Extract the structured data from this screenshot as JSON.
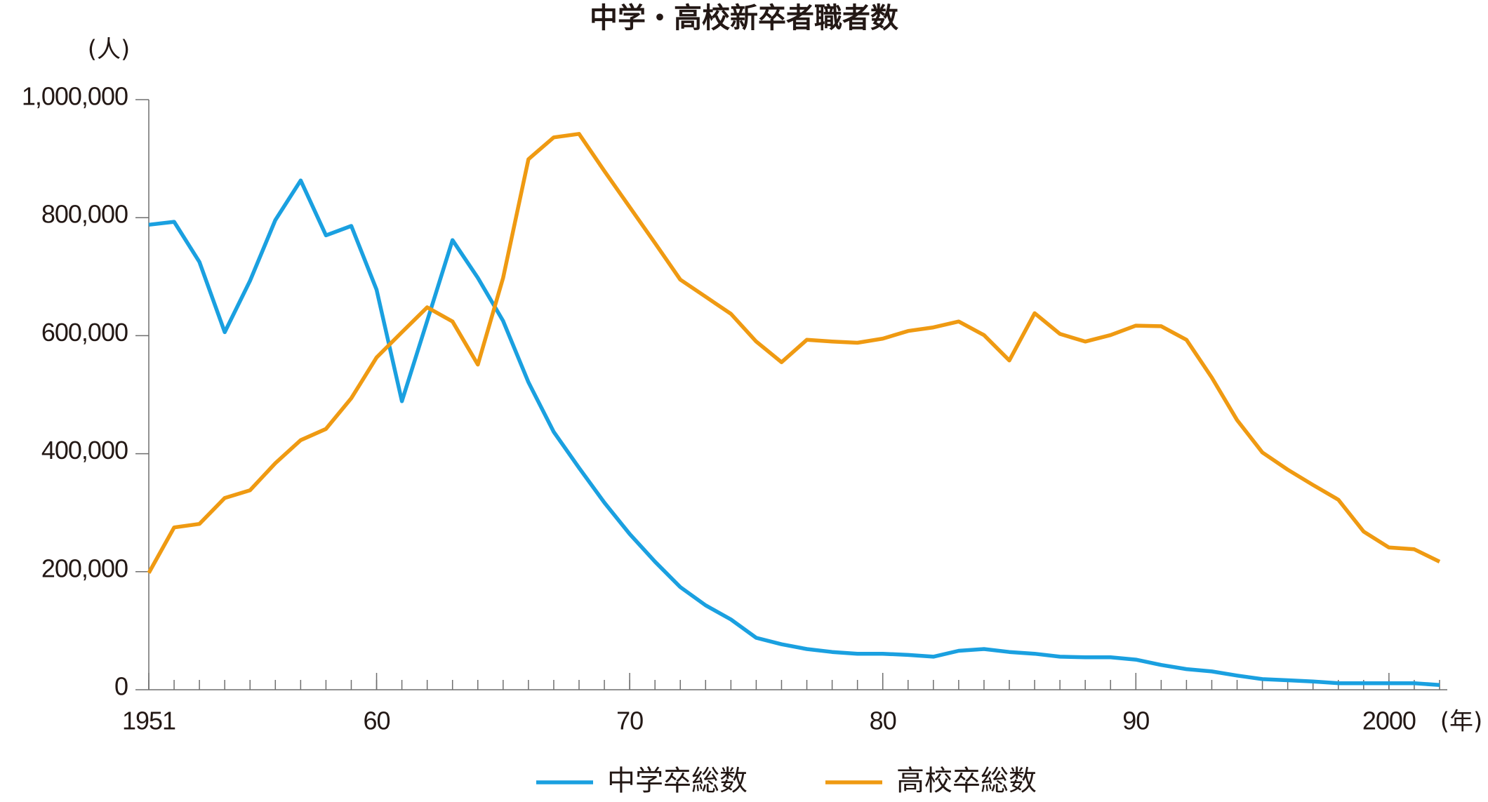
{
  "chart_data": {
    "type": "line",
    "title": "中学・高校新卒者職者数",
    "y_label": "(人)",
    "x_label": "(年)",
    "x": [
      1951,
      1952,
      1953,
      1954,
      1955,
      1956,
      1957,
      1958,
      1959,
      1960,
      1961,
      1962,
      1963,
      1964,
      1965,
      1966,
      1967,
      1968,
      1969,
      1970,
      1971,
      1972,
      1973,
      1974,
      1975,
      1976,
      1977,
      1978,
      1979,
      1980,
      1981,
      1982,
      1983,
      1984,
      1985,
      1986,
      1987,
      1988,
      1989,
      1990,
      1991,
      1992,
      1993,
      1994,
      1995,
      1996,
      1997,
      1998,
      1999,
      2000,
      2001,
      2002
    ],
    "series": [
      {
        "name": "中学卒総数",
        "color": "#1aa0e0",
        "values": [
          788000,
          793000,
          725000,
          606000,
          693000,
          796000,
          863000,
          770000,
          786000,
          678000,
          489000,
          625000,
          762000,
          698000,
          625000,
          521000,
          437000,
          376000,
          317000,
          264000,
          217000,
          174000,
          143000,
          119000,
          88000,
          77000,
          69000,
          64000,
          61000,
          61000,
          59000,
          56000,
          66000,
          69000,
          64000,
          61000,
          56000,
          55000,
          55000,
          51000,
          42000,
          35000,
          31000,
          24000,
          18000,
          16000,
          14000,
          11000,
          11000,
          11000,
          11000,
          8000
        ]
      },
      {
        "name": "高校卒総数",
        "color": "#ef9a12",
        "values": [
          198000,
          275000,
          281000,
          325000,
          338000,
          384000,
          423000,
          442000,
          494000,
          563000,
          606000,
          648000,
          624000,
          551000,
          698000,
          899000,
          936000,
          942000,
          879000,
          818000,
          757000,
          695000,
          666000,
          637000,
          590000,
          555000,
          593000,
          590000,
          588000,
          595000,
          608000,
          614000,
          624000,
          601000,
          558000,
          638000,
          603000,
          590000,
          601000,
          617000,
          616000,
          593000,
          529000,
          457000,
          402000,
          373000,
          347000,
          322000,
          268000,
          241000,
          238000,
          217000
        ]
      }
    ],
    "xlim": [
      1951,
      2002
    ],
    "xticks": [
      1951,
      {
        "value": 1960,
        "label": "60"
      },
      {
        "value": 1970,
        "label": "70"
      },
      {
        "value": 1980,
        "label": "80"
      },
      {
        "value": 1990,
        "label": "90"
      },
      2000
    ],
    "ylim": [
      0,
      1000000
    ],
    "yticks": [
      0,
      {
        "value": 200000,
        "label": "200,000"
      },
      {
        "value": 400000,
        "label": "400,000"
      },
      {
        "value": 600000,
        "label": "600,000"
      },
      {
        "value": 800000,
        "label": "800,000"
      },
      {
        "value": 1000000,
        "label": "1,000,000"
      }
    ],
    "legend": "bottom"
  }
}
